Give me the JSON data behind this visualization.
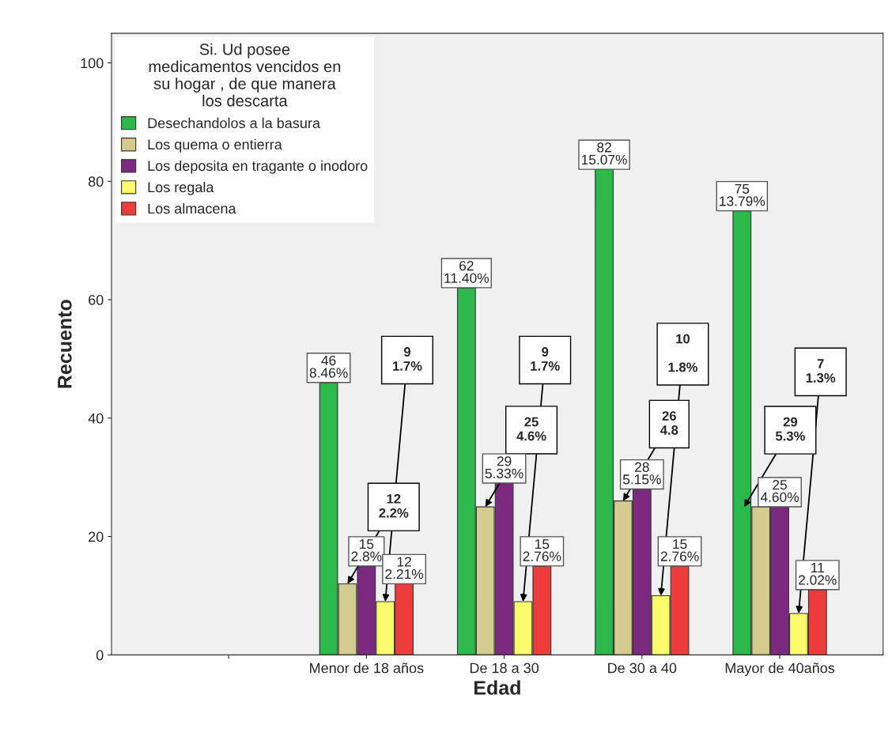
{
  "chart_data": {
    "type": "bar",
    "xlabel": "Edad",
    "ylabel": "Recuento",
    "legend_title": "Si. Ud posee medicamentos vencidos en su hogar , de que manera los descarta",
    "categories": [
      null,
      "Menor de 18 años",
      "De 18 a 30",
      "De 30 a 40",
      "Mayor de 40años"
    ],
    "series": [
      {
        "name": "Desechandolos a la basura",
        "color": "#2db84b",
        "values": [
          null,
          46,
          62,
          82,
          75
        ],
        "value_labels": [
          null,
          "46\n8.46%",
          "62\n11.40%",
          "82\n15.07%",
          "75\n13.79%"
        ]
      },
      {
        "name": "Los quema o entierra",
        "color": "#d4cc8f",
        "values": [
          null,
          12,
          25,
          26,
          25
        ],
        "value_labels": [
          null,
          "12\n2.2%",
          "25\n4.6%",
          "26\n4.8",
          null
        ]
      },
      {
        "name": "Los deposita en tragante o inodoro",
        "color": "#7b2a7f",
        "values": [
          null,
          15,
          29,
          28,
          25
        ],
        "value_labels": [
          null,
          "15\n2.8%",
          "29\n5.33%",
          "28\n5.15%",
          "25\n4.60%"
        ]
      },
      {
        "name": "Los regala",
        "color": "#fbfb6c",
        "values": [
          null,
          9,
          9,
          10,
          7
        ],
        "value_labels": [
          null,
          "9\n1.7%",
          "9\n1.7%",
          "10\n\n1.8%",
          "7\n1.3%"
        ]
      },
      {
        "name": "Los almacena",
        "color": "#ee3b3b",
        "values": [
          null,
          12,
          15,
          15,
          11
        ],
        "value_labels": [
          null,
          "12\n2.21%",
          "15\n2.76%",
          "15\n2.76%",
          "11\n2.02%"
        ]
      }
    ],
    "annotations": [
      "29\n5.3%"
    ],
    "ylim": [
      0,
      105
    ],
    "yticks": [
      0,
      20,
      40,
      60,
      80,
      100
    ],
    "grid": false,
    "legend": "top left"
  }
}
